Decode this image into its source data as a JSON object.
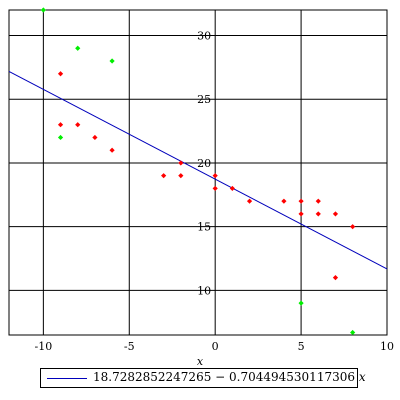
{
  "chart_data": {
    "type": "scatter",
    "title": "",
    "xlabel": "x",
    "ylabel": "",
    "xlim": [
      -12,
      10
    ],
    "ylim": [
      6.5,
      32
    ],
    "grid": true,
    "x_ticks": [
      -10,
      -5,
      0,
      5,
      10
    ],
    "y_ticks": [
      10,
      15,
      20,
      25,
      30
    ],
    "x_tick_labels": [
      "-10",
      "-5",
      "0",
      "5",
      "10"
    ],
    "y_tick_labels": [
      "10",
      "15",
      "20",
      "25",
      "30"
    ],
    "series": [
      {
        "color": "#ff0000",
        "points": [
          [
            -9,
            27
          ],
          [
            -9,
            23
          ],
          [
            -8,
            23
          ],
          [
            -7,
            22
          ],
          [
            -6,
            21
          ],
          [
            -3,
            19
          ],
          [
            -2,
            20
          ],
          [
            -2,
            19
          ],
          [
            0,
            19
          ],
          [
            0,
            18
          ],
          [
            1,
            18
          ],
          [
            2,
            17
          ],
          [
            4,
            17
          ],
          [
            5,
            17
          ],
          [
            5,
            16
          ],
          [
            6,
            17
          ],
          [
            6,
            16
          ],
          [
            7,
            16
          ],
          [
            8,
            15
          ],
          [
            7,
            11
          ]
        ]
      },
      {
        "color": "#00ee00",
        "points": [
          [
            -10,
            32
          ],
          [
            -8,
            29
          ],
          [
            -6,
            28
          ],
          [
            -9,
            22
          ],
          [
            5,
            9
          ],
          [
            8,
            6.7
          ]
        ]
      }
    ],
    "regression_line": {
      "intercept": 18.7282852247265,
      "slope": -0.704494530117306,
      "color": "#0000bb"
    },
    "legend": {
      "placement": "bottom",
      "entries": [
        {
          "expression_main": "18.7282852247265 − 0.704494530117306",
          "expression_var": "x"
        }
      ]
    }
  }
}
